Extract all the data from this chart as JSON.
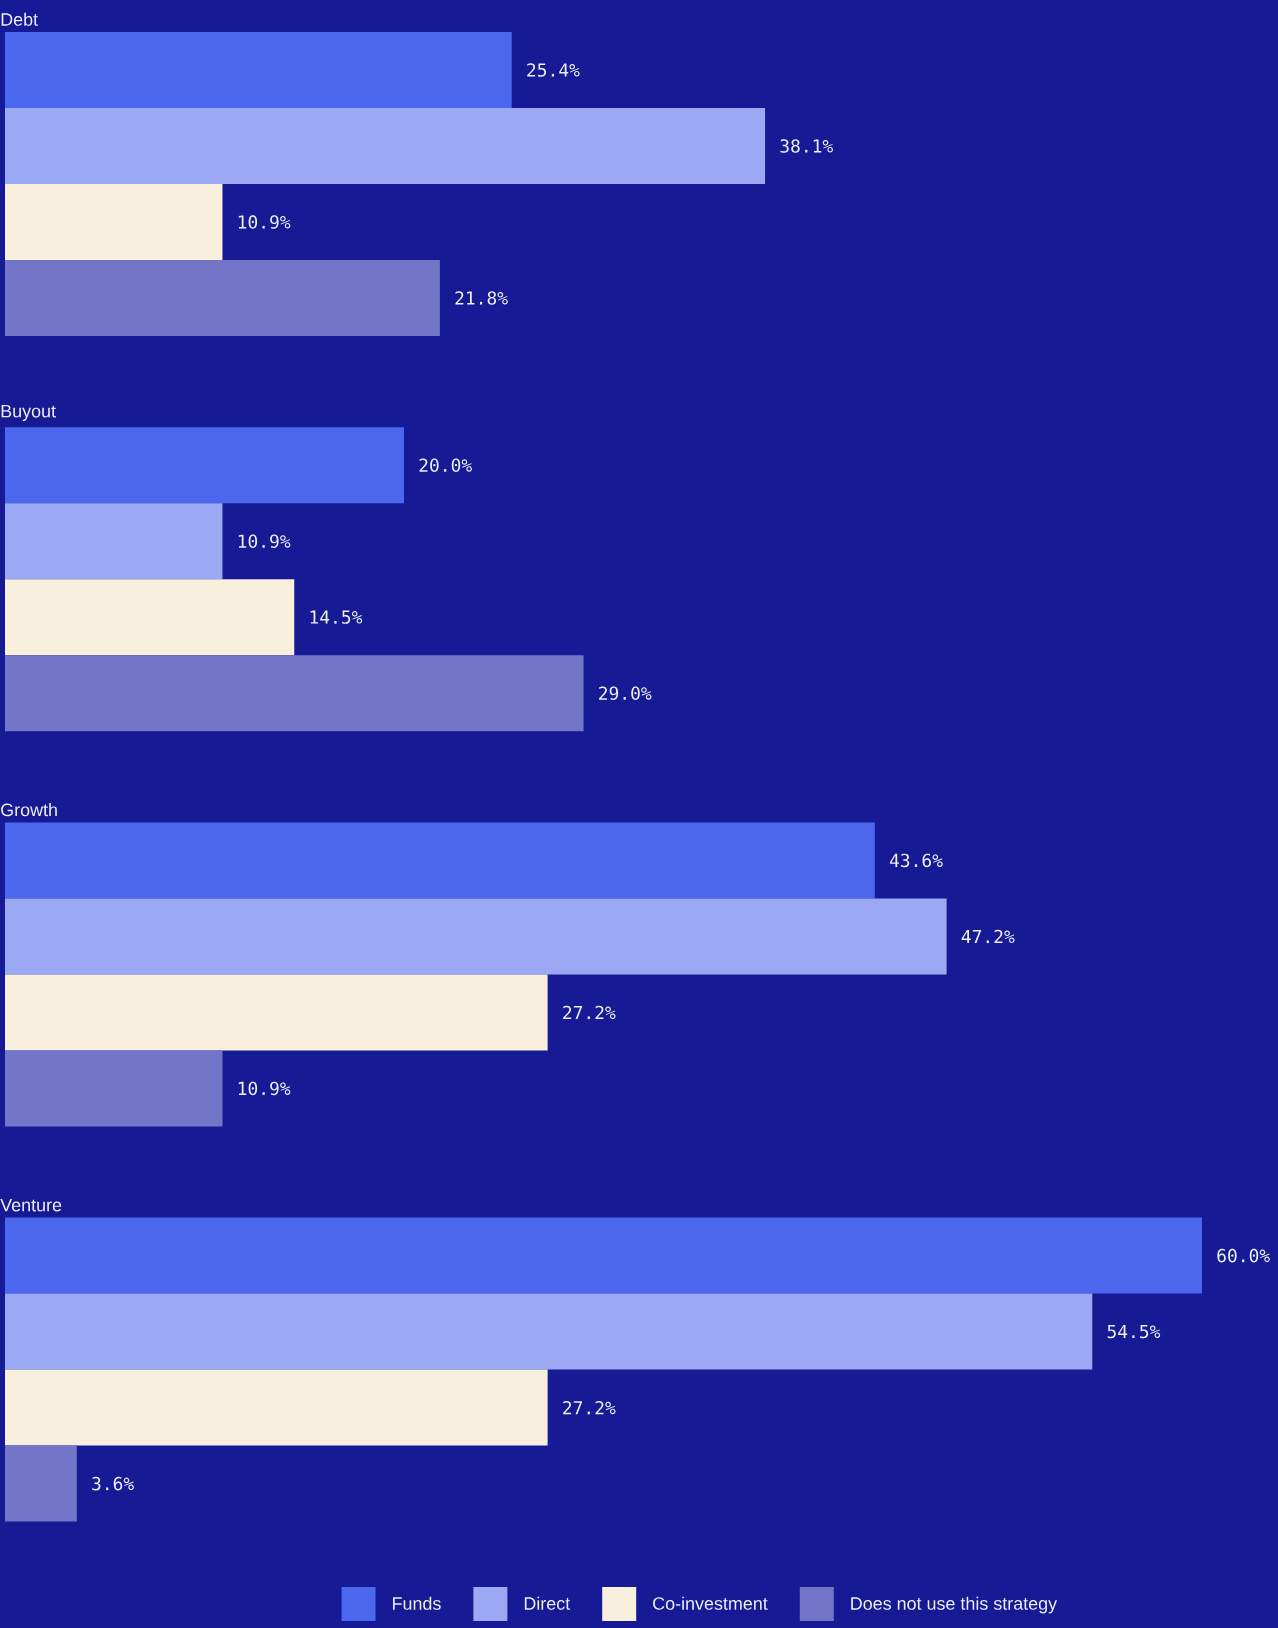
{
  "chart_data": {
    "type": "bar",
    "orientation": "horizontal",
    "categories": [
      "Debt",
      "Buyout",
      "Growth",
      "Venture"
    ],
    "series": [
      {
        "name": "Funds",
        "color": "#4a67ee",
        "values": [
          25.4,
          20.0,
          43.6,
          60.0
        ],
        "value_labels": [
          "25.4%",
          "20.0%",
          "43.6%",
          "60.0%"
        ]
      },
      {
        "name": "Direct",
        "color": "#9ba8f4",
        "values": [
          38.1,
          10.9,
          47.2,
          54.5
        ],
        "value_labels": [
          "38.1%",
          "10.9%",
          "47.2%",
          "54.5%"
        ]
      },
      {
        "name": "Co-investment",
        "color": "#f8f0dc",
        "values": [
          10.9,
          14.5,
          27.2,
          27.2
        ],
        "value_labels": [
          "10.9%",
          "14.5%",
          "27.2%",
          "27.2%"
        ]
      },
      {
        "name": "Does not use this strategy",
        "color": "#7275c8",
        "values": [
          21.8,
          29.0,
          10.9,
          3.6
        ],
        "value_labels": [
          "21.8%",
          "29.0%",
          "10.9%",
          "3.6%"
        ]
      }
    ],
    "legend": "bottom"
  }
}
